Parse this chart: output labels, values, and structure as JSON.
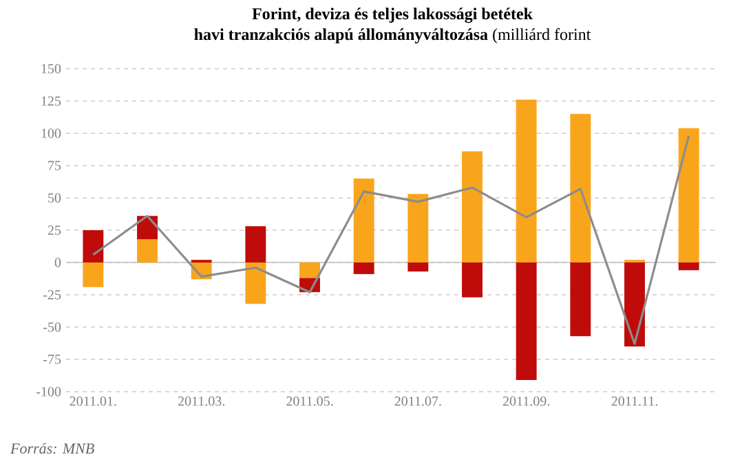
{
  "chart_data": {
    "type": "bar",
    "stacked": true,
    "title": "Forint, deviza és teljes lakossági betétek",
    "subtitle": "**havi tranzakciós alapú állományváltozása** (milliárd forint",
    "annotations": [
      "*Forrás: MNB*"
    ],
    "categories": [
      "2011.01.",
      null,
      "2011.03.",
      null,
      "2011.05.",
      null,
      "2011.07.",
      null,
      "2011.09.",
      null,
      "2011.11.",
      null
    ],
    "series": [
      {
        "color": "#f9a51b",
        "values": [
          -19,
          18,
          -13,
          -32,
          -12,
          65,
          53,
          86,
          126,
          115,
          2,
          104
        ]
      },
      {
        "color": "#c00b0b",
        "values": [
          25,
          18,
          2,
          28,
          -11,
          -9,
          -7,
          -27,
          -91,
          -57,
          -65,
          -6
        ]
      },
      {
        "type": "line",
        "color": "#8c8c8c",
        "values": [
          6,
          36,
          -11,
          -4,
          -23,
          55,
          47,
          58,
          35,
          57,
          -63,
          98
        ]
      }
    ],
    "ylim": [
      -100,
      150
    ],
    "yticks": [
      -100,
      -75,
      -50,
      -25,
      0,
      25,
      50,
      75,
      100,
      125,
      150
    ],
    "grid": "y"
  }
}
